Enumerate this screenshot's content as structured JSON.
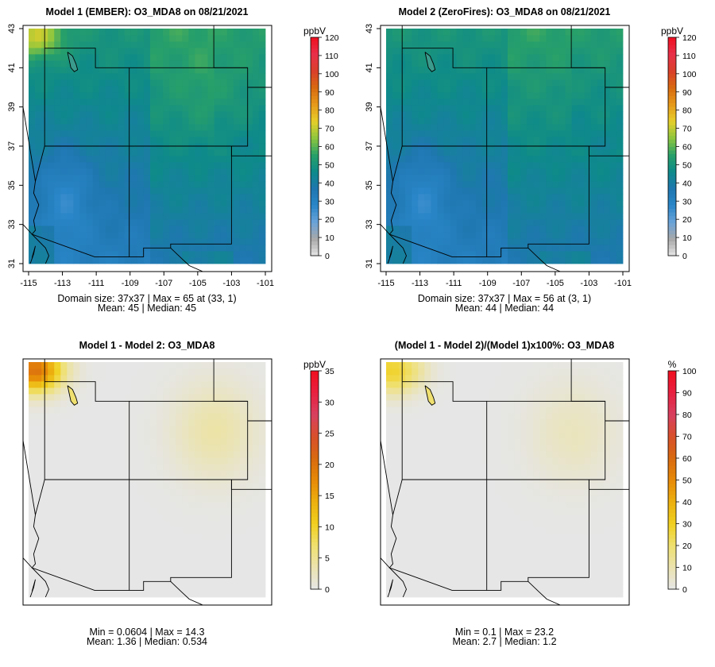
{
  "chart_data": [
    {
      "type": "heatmap",
      "title": "Model 1 (EMBER): O3_MDA8 on 08/21/2021",
      "colorbar": {
        "unit": "ppbV",
        "ticks": [
          0,
          10,
          20,
          30,
          40,
          50,
          60,
          70,
          80,
          90,
          100,
          110,
          120
        ],
        "range": [
          0,
          120
        ]
      },
      "xticks": [
        "-115",
        "-113",
        "-111",
        "-109",
        "-107",
        "-105",
        "-103",
        "-101"
      ],
      "yticks": [
        "31",
        "33",
        "35",
        "37",
        "39",
        "41",
        "43"
      ],
      "xlim": [
        -115,
        -101
      ],
      "ylim": [
        31,
        43
      ],
      "grid": [
        37,
        37
      ],
      "stats": {
        "domain": "37x37",
        "max": 65,
        "max_at": "(33, 1)",
        "mean": 45,
        "median": 45
      },
      "stat_line1": "Domain size: 37x37 | Max = 65 at (33, 1)",
      "stat_line2": "Mean: 45 |  Median: 45"
    },
    {
      "type": "heatmap",
      "title": "Model 2 (ZeroFires): O3_MDA8 on 08/21/2021",
      "colorbar": {
        "unit": "ppbV",
        "ticks": [
          0,
          10,
          20,
          30,
          40,
          50,
          60,
          70,
          80,
          90,
          100,
          110,
          120
        ],
        "range": [
          0,
          120
        ]
      },
      "xticks": [
        "-115",
        "-113",
        "-111",
        "-109",
        "-107",
        "-105",
        "-103",
        "-101"
      ],
      "yticks": [
        "31",
        "33",
        "35",
        "37",
        "39",
        "41",
        "43"
      ],
      "xlim": [
        -115,
        -101
      ],
      "ylim": [
        31,
        43
      ],
      "grid": [
        37,
        37
      ],
      "stats": {
        "domain": "37x37",
        "max": 56,
        "max_at": "(3, 1)",
        "mean": 44,
        "median": 44
      },
      "stat_line1": "Domain size: 37x37 | Max = 56 at (3, 1)",
      "stat_line2": "Mean: 44 |  Median: 44"
    },
    {
      "type": "heatmap",
      "title": "Model 1 - Model 2: O3_MDA8",
      "colorbar": {
        "unit": "ppbV",
        "ticks": [
          0,
          5,
          10,
          15,
          20,
          25,
          30,
          35
        ],
        "range": [
          0,
          35
        ]
      },
      "grid": [
        37,
        37
      ],
      "stats": {
        "min": 0.0604,
        "max": 14.3,
        "mean": 1.36,
        "median": 0.534
      },
      "stat_line1": "Min = 0.0604 | Max = 14.3",
      "stat_line2": "Mean: 1.36 |  Median: 0.534"
    },
    {
      "type": "heatmap",
      "title": "(Model 1 - Model 2)/(Model 1)x100%: O3_MDA8",
      "colorbar": {
        "unit": "%",
        "ticks": [
          0,
          10,
          20,
          30,
          40,
          50,
          60,
          70,
          80,
          90,
          100
        ],
        "range": [
          0,
          100
        ]
      },
      "grid": [
        37,
        37
      ],
      "stats": {
        "min": 0.1,
        "max": 23.2,
        "mean": 2.7,
        "median": 1.2
      },
      "stat_line1": "Min = 0.1 | Max = 23.2",
      "stat_line2": "Mean: 2.7 |  Median: 1.2"
    }
  ],
  "colors": {
    "abs_ramp": [
      "#e6e6e6",
      "#a8a8a8",
      "#6aa3d9",
      "#2a86c8",
      "#1f77b0",
      "#0e8a8a",
      "#28a06a",
      "#8cc63e",
      "#e6cf2a",
      "#e69a1a",
      "#d86a10",
      "#d9402a",
      "#e8304a",
      "#f01020"
    ],
    "diff_ramp": [
      "#e6e6e6",
      "#ebe3b0",
      "#efe070",
      "#f0d020",
      "#ecb010",
      "#e68a08",
      "#d86a10",
      "#d8502a",
      "#d84060",
      "#e82040",
      "#f01020"
    ]
  }
}
